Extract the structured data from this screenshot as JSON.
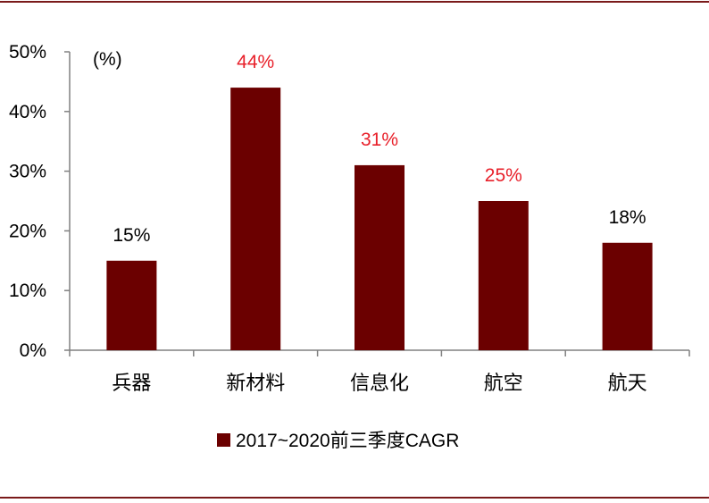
{
  "chart_data": {
    "type": "bar",
    "categories": [
      "兵器",
      "新材料",
      "信息化",
      "航空",
      "航天"
    ],
    "series": [
      {
        "name": "2017~2020前三季度CAGR",
        "values": [
          15,
          44,
          31,
          25,
          18
        ],
        "labels": [
          "15%",
          "44%",
          "31%",
          "25%",
          "18%"
        ]
      }
    ],
    "ylim": [
      0,
      50
    ],
    "yticks": [
      "0%",
      "10%",
      "20%",
      "30%",
      "40%",
      "50%"
    ],
    "unit_label": "(%)",
    "legend_position": "bottom",
    "grid": false,
    "colors": {
      "bar": "#6b0000",
      "label_highlight": "#e8202a",
      "label_normal": "#000000",
      "frame": "#7a1a1a",
      "axis": "#808080"
    },
    "highlighted_labels": [
      false,
      true,
      true,
      true,
      false
    ]
  }
}
